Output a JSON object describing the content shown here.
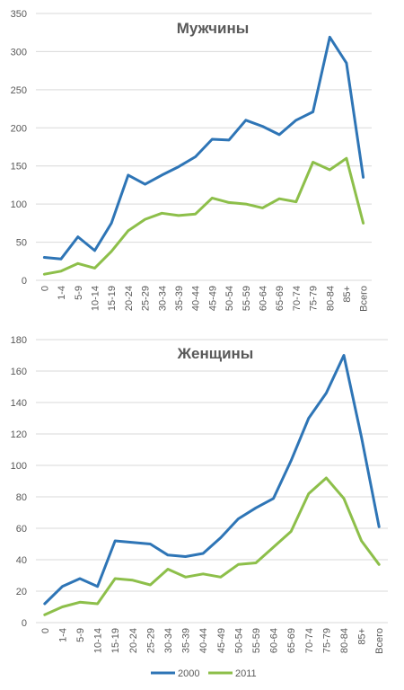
{
  "chart_data": [
    {
      "type": "line",
      "title": "Мужчины",
      "categories": [
        "0",
        "1-4",
        "5-9",
        "10-14",
        "15-19",
        "20-24",
        "25-29",
        "30-34",
        "35-39",
        "40-44",
        "45-49",
        "50-54",
        "55-59",
        "60-64",
        "65-69",
        "70-74",
        "75-79",
        "80-84",
        "85+",
        "Всего"
      ],
      "ylim": [
        0,
        350
      ],
      "yticks": [
        0,
        50,
        100,
        150,
        200,
        250,
        300,
        350
      ],
      "series": [
        {
          "name": "2000",
          "color": "#2e75b6",
          "values": [
            30,
            28,
            57,
            39,
            75,
            138,
            126,
            138,
            149,
            162,
            185,
            184,
            210,
            202,
            191,
            210,
            221,
            319,
            285,
            135
          ]
        },
        {
          "name": "2011",
          "color": "#8dbf4a",
          "values": [
            8,
            12,
            22,
            16,
            38,
            65,
            80,
            88,
            85,
            87,
            108,
            102,
            100,
            95,
            107,
            103,
            155,
            145,
            160,
            75
          ]
        }
      ]
    },
    {
      "type": "line",
      "title": "Женщины",
      "categories": [
        "0",
        "1-4",
        "5-9",
        "10-14",
        "15-19",
        "20-24",
        "25-29",
        "30-34",
        "35-39",
        "40-44",
        "45-49",
        "50-54",
        "55-59",
        "60-64",
        "65-69",
        "70-74",
        "75-79",
        "80-84",
        "85+",
        "Всего"
      ],
      "ylim": [
        0,
        180
      ],
      "yticks": [
        0,
        20,
        40,
        60,
        80,
        100,
        120,
        140,
        160,
        180
      ],
      "series": [
        {
          "name": "2000",
          "color": "#2e75b6",
          "values": [
            12,
            23,
            28,
            23,
            52,
            51,
            50,
            43,
            42,
            44,
            54,
            66,
            73,
            79,
            103,
            130,
            146,
            170,
            118,
            61
          ]
        },
        {
          "name": "2011",
          "color": "#8dbf4a",
          "values": [
            5,
            10,
            13,
            12,
            28,
            27,
            24,
            34,
            29,
            31,
            29,
            37,
            38,
            48,
            58,
            82,
            92,
            79,
            52,
            37
          ]
        }
      ]
    }
  ],
  "legend": [
    {
      "label": "2000",
      "color": "#2e75b6"
    },
    {
      "label": "2011",
      "color": "#8dbf4a"
    }
  ]
}
